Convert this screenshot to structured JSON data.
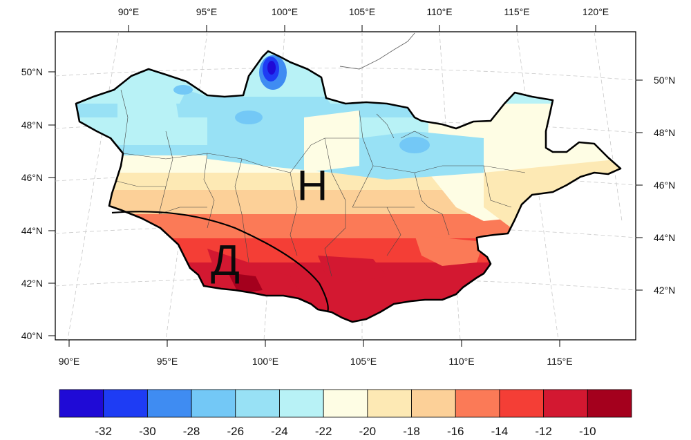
{
  "map": {
    "region": "Mongolia",
    "zones": [
      {
        "id": "north",
        "label": "Н"
      },
      {
        "id": "south",
        "label": "Д"
      }
    ],
    "axes": {
      "top_lon_ticks": [
        "90°E",
        "95°E",
        "100°E",
        "105°E",
        "110°E",
        "115°E",
        "120°E"
      ],
      "bottom_lon_ticks": [
        "90°E",
        "95°E",
        "100°E",
        "105°E",
        "110°E",
        "115°E"
      ],
      "left_lat_ticks": [
        "50°N",
        "48°N",
        "46°N",
        "44°N",
        "42°N",
        "40°N"
      ],
      "right_lat_ticks": [
        "50°N",
        "48°N",
        "46°N",
        "44°N",
        "42°N"
      ]
    }
  },
  "colorbar": {
    "colors": [
      "#1f0ad6",
      "#1e3cf4",
      "#3f8cf2",
      "#73c8f6",
      "#98e1f5",
      "#b8f2f6",
      "#fefde4",
      "#fde9b4",
      "#fcd098",
      "#fb7a57",
      "#f43e36",
      "#d31831",
      "#a4001d"
    ],
    "labels": [
      "-32",
      "-30",
      "-28",
      "-26",
      "-24",
      "-22",
      "-20",
      "-18",
      "-16",
      "-14",
      "-12",
      "-10"
    ]
  }
}
